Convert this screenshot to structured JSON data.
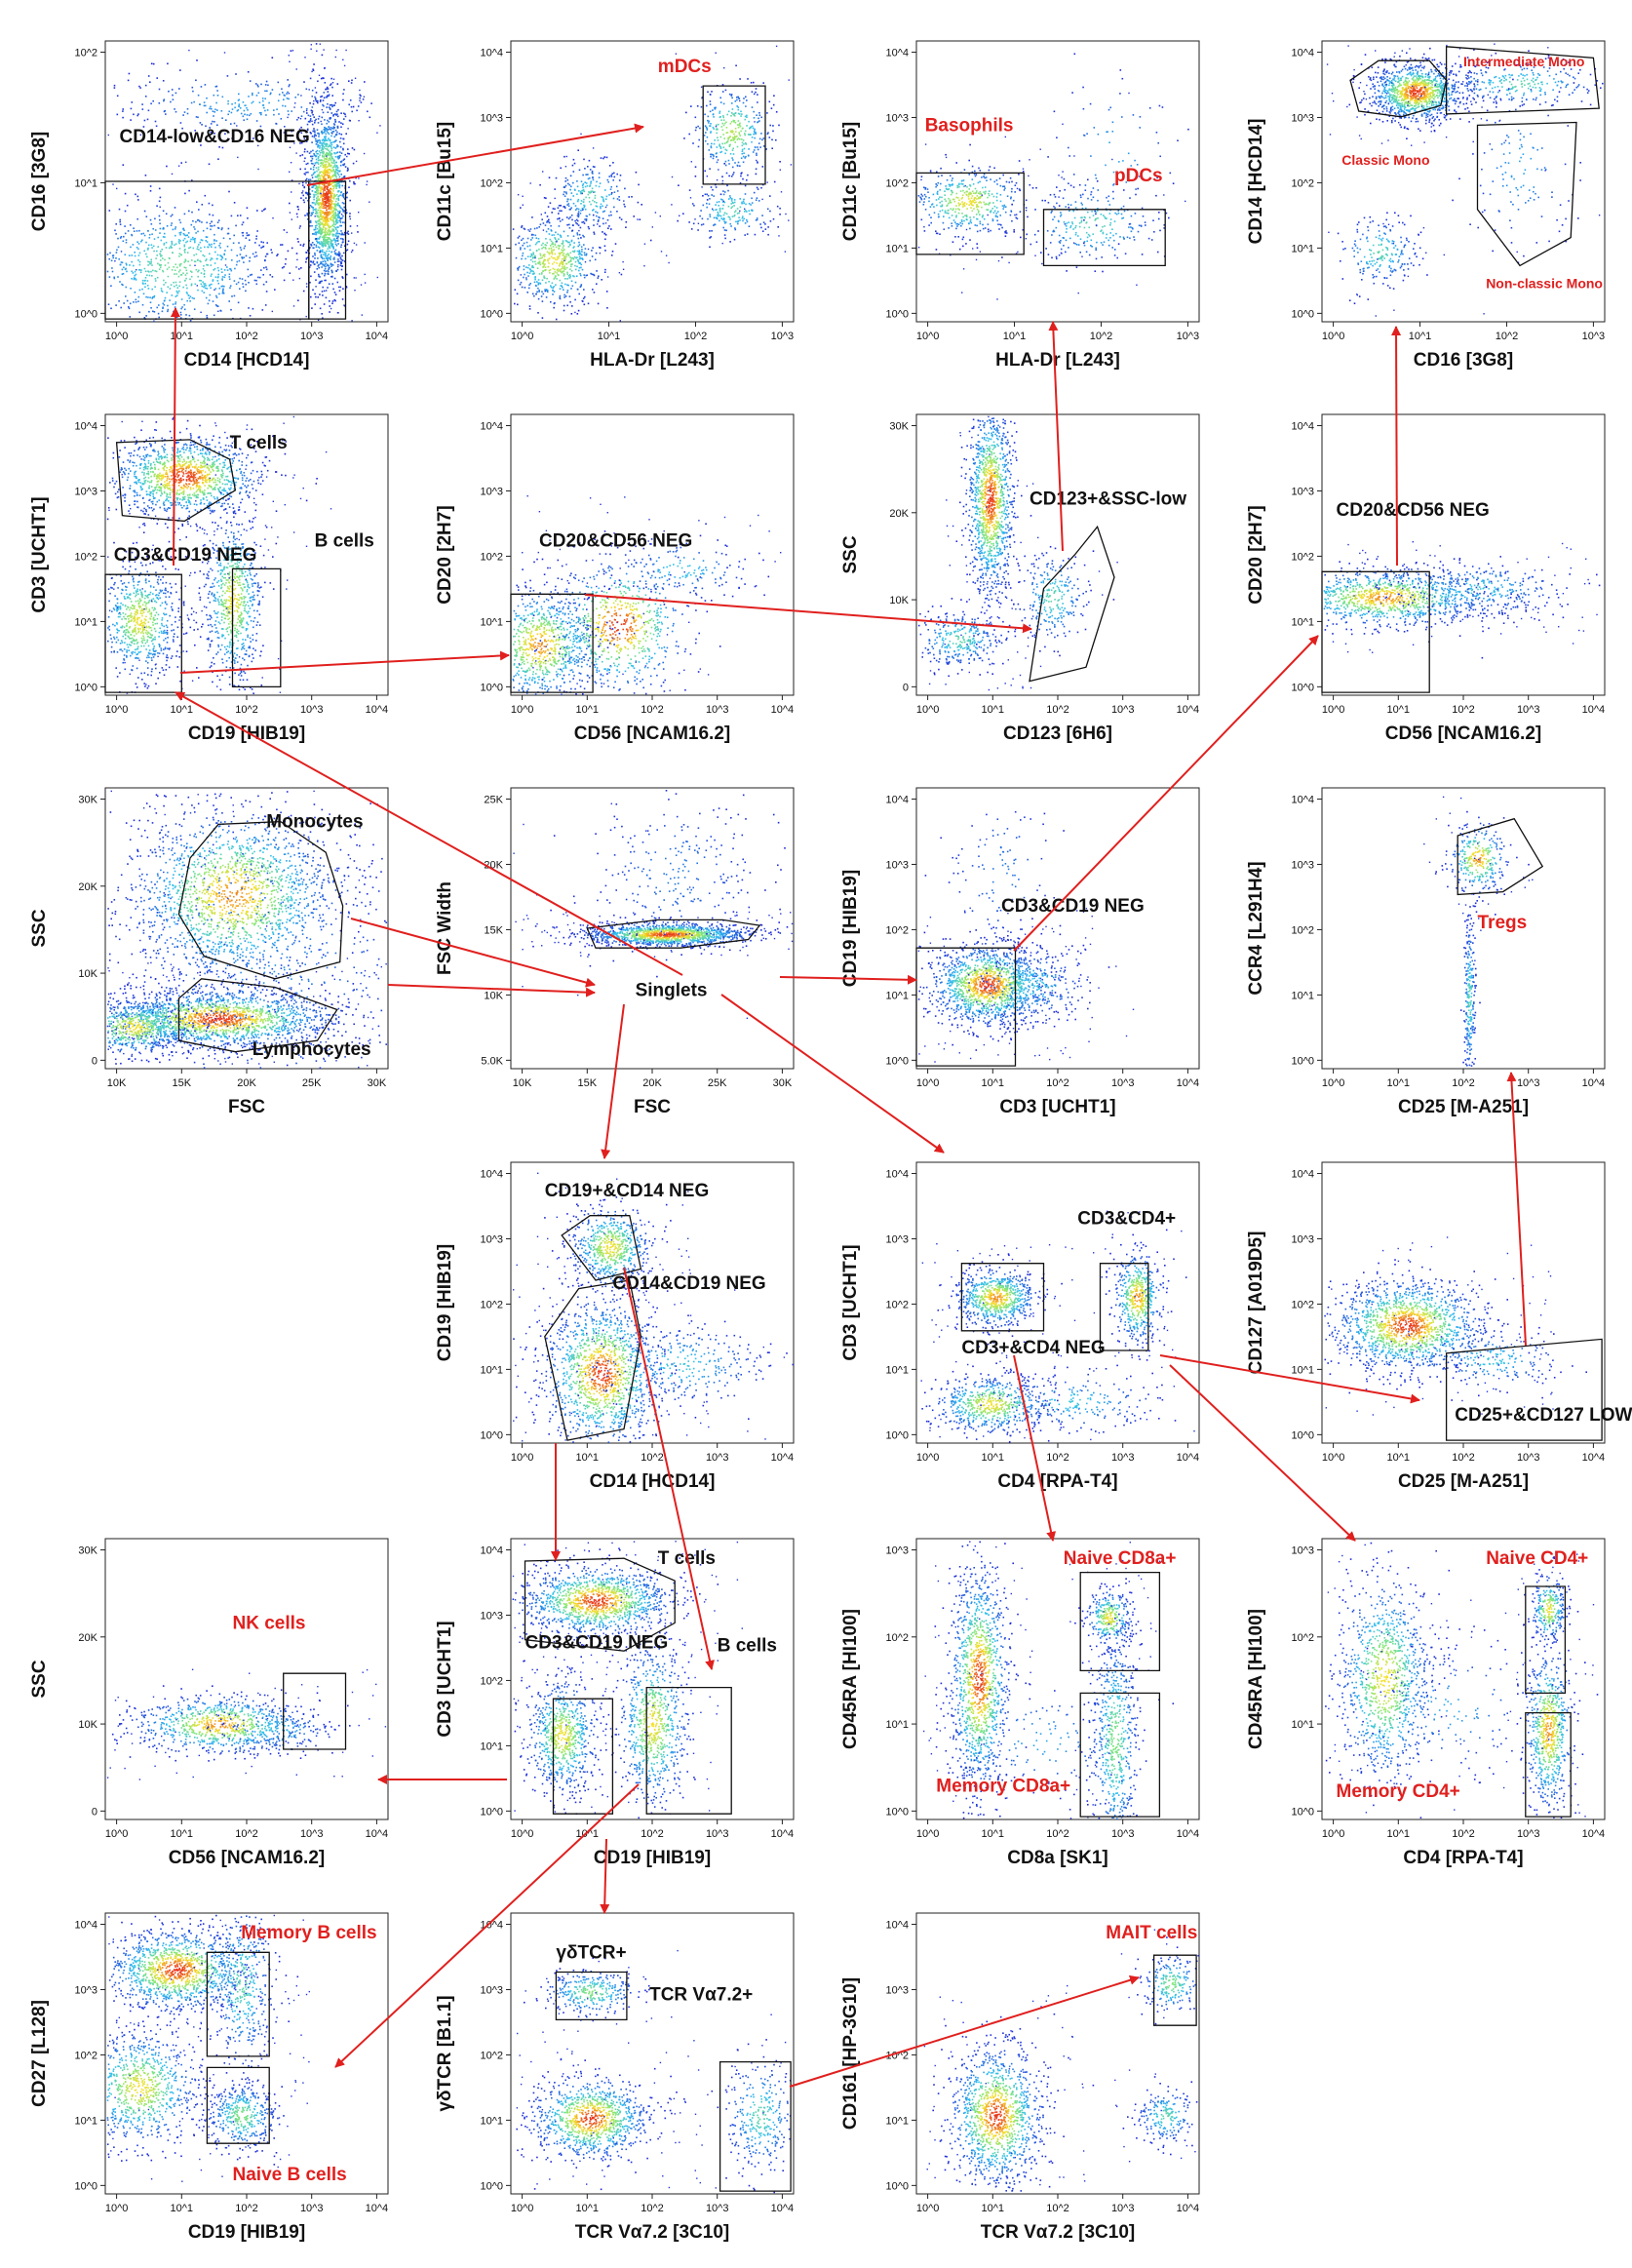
{
  "title": "",
  "colors": {
    "gate_red": "#e0201e",
    "arrow": "#e0201e",
    "gate_line": "#111111",
    "dot_low": "#1b2bd6",
    "dot_mid": "#2fd1ef",
    "dot_high": "#f6e02a",
    "dot_peak": "#e8321a"
  },
  "panels": [
    {
      "id": "p1",
      "xlabel": "CD14 [HCD14]",
      "ylabel": "CD16 [3G8]",
      "yticks": [
        "10^0",
        "10^1",
        "10^2"
      ],
      "xticks": [
        "10^0",
        "10^1",
        "10^2",
        "10^3",
        "10^4"
      ],
      "gates": [
        {
          "label": "CD14-low&CD16 NEG",
          "red": false
        }
      ]
    },
    {
      "id": "p2",
      "xlabel": "HLA-Dr [L243]",
      "ylabel": "CD11c [Bu15]",
      "yticks": [
        "10^0",
        "10^1",
        "10^2",
        "10^3",
        "10^4"
      ],
      "xticks": [
        "10^0",
        "10^1",
        "10^2",
        "10^3"
      ],
      "gates": [
        {
          "label": "mDCs",
          "red": true
        }
      ]
    },
    {
      "id": "p3",
      "xlabel": "HLA-Dr [L243]",
      "ylabel": "CD11c [Bu15]",
      "yticks": [
        "10^0",
        "10^1",
        "10^2",
        "10^3",
        "10^4"
      ],
      "xticks": [
        "10^0",
        "10^1",
        "10^2",
        "10^3"
      ],
      "gates": [
        {
          "label": "Basophils",
          "red": true
        },
        {
          "label": "pDCs",
          "red": true
        }
      ]
    },
    {
      "id": "p4",
      "xlabel": "CD16 [3G8]",
      "ylabel": "CD14 [HCD14]",
      "yticks": [
        "10^0",
        "10^1",
        "10^2",
        "10^3",
        "10^4"
      ],
      "xticks": [
        "10^0",
        "10^1",
        "10^2",
        "10^3"
      ],
      "gates": [
        {
          "label": "Intermediate Mono",
          "red": true
        },
        {
          "label": "Classic Mono",
          "red": true
        },
        {
          "label": "Non-classic Mono",
          "red": true
        }
      ]
    },
    {
      "id": "p5",
      "xlabel": "CD19 [HIB19]",
      "ylabel": "CD3 [UCHT1]",
      "yticks": [
        "10^0",
        "10^1",
        "10^2",
        "10^3",
        "10^4"
      ],
      "xticks": [
        "10^0",
        "10^1",
        "10^2",
        "10^3",
        "10^4"
      ],
      "gates": [
        {
          "label": "T cells",
          "red": false
        },
        {
          "label": "CD3&CD19 NEG",
          "red": false
        },
        {
          "label": "B cells",
          "red": false
        }
      ]
    },
    {
      "id": "p6",
      "xlabel": "CD56 [NCAM16.2]",
      "ylabel": "CD20 [2H7]",
      "yticks": [
        "10^0",
        "10^1",
        "10^2",
        "10^3",
        "10^4"
      ],
      "xticks": [
        "10^0",
        "10^1",
        "10^2",
        "10^3",
        "10^4"
      ],
      "gates": [
        {
          "label": "CD20&CD56 NEG",
          "red": false
        }
      ]
    },
    {
      "id": "p7",
      "xlabel": "CD123 [6H6]",
      "ylabel": "SSC",
      "yticks": [
        "0",
        "10K",
        "20K",
        "30K"
      ],
      "xticks": [
        "10^0",
        "10^1",
        "10^2",
        "10^3",
        "10^4"
      ],
      "gates": [
        {
          "label": "CD123+&SSC-low",
          "red": false
        }
      ]
    },
    {
      "id": "p8",
      "xlabel": "CD56 [NCAM16.2]",
      "ylabel": "CD20 [2H7]",
      "yticks": [
        "10^0",
        "10^1",
        "10^2",
        "10^3",
        "10^4"
      ],
      "xticks": [
        "10^0",
        "10^1",
        "10^2",
        "10^3",
        "10^4"
      ],
      "gates": [
        {
          "label": "CD20&CD56 NEG",
          "red": false
        }
      ]
    },
    {
      "id": "p9",
      "xlabel": "FSC",
      "ylabel": "SSC",
      "yticks": [
        "0",
        "10K",
        "20K",
        "30K"
      ],
      "xticks": [
        "10K",
        "15K",
        "20K",
        "25K",
        "30K"
      ],
      "gates": [
        {
          "label": "Monocytes",
          "red": false
        },
        {
          "label": "Lymphocytes",
          "red": false
        }
      ]
    },
    {
      "id": "p10",
      "xlabel": "FSC",
      "ylabel": "FSC Width",
      "yticks": [
        "5.0K",
        "10K",
        "15K",
        "20K",
        "25K"
      ],
      "xticks": [
        "10K",
        "15K",
        "20K",
        "25K",
        "30K"
      ],
      "gates": [
        {
          "label": "Singlets",
          "red": false
        }
      ]
    },
    {
      "id": "p11",
      "xlabel": "CD3 [UCHT1]",
      "ylabel": "CD19 [HIB19]",
      "yticks": [
        "10^0",
        "10^1",
        "10^2",
        "10^3",
        "10^4"
      ],
      "xticks": [
        "10^0",
        "10^1",
        "10^2",
        "10^3",
        "10^4"
      ],
      "gates": [
        {
          "label": "CD3&CD19 NEG",
          "red": false
        }
      ]
    },
    {
      "id": "p12",
      "xlabel": "CD25 [M-A251]",
      "ylabel": "CCR4 [L291H4]",
      "yticks": [
        "10^0",
        "10^1",
        "10^2",
        "10^3",
        "10^4"
      ],
      "xticks": [
        "10^0",
        "10^1",
        "10^2",
        "10^3",
        "10^4"
      ],
      "gates": [
        {
          "label": "Tregs",
          "red": true
        }
      ]
    },
    {
      "id": "p13",
      "xlabel": "CD14 [HCD14]",
      "ylabel": "CD19 [HIB19]",
      "yticks": [
        "10^0",
        "10^1",
        "10^2",
        "10^3",
        "10^4"
      ],
      "xticks": [
        "10^0",
        "10^1",
        "10^2",
        "10^3",
        "10^4"
      ],
      "gates": [
        {
          "label": "CD19+&CD14 NEG",
          "red": false
        },
        {
          "label": "CD14&CD19 NEG",
          "red": false
        }
      ]
    },
    {
      "id": "p14",
      "xlabel": "CD4 [RPA-T4]",
      "ylabel": "CD3 [UCHT1]",
      "yticks": [
        "10^0",
        "10^1",
        "10^2",
        "10^3",
        "10^4"
      ],
      "xticks": [
        "10^0",
        "10^1",
        "10^2",
        "10^3",
        "10^4"
      ],
      "gates": [
        {
          "label": "CD3&CD4+",
          "red": false
        },
        {
          "label": "CD3+&CD4 NEG",
          "red": false
        }
      ]
    },
    {
      "id": "p15",
      "xlabel": "CD25 [M-A251]",
      "ylabel": "CD127 [A019D5]",
      "yticks": [
        "10^0",
        "10^1",
        "10^2",
        "10^3",
        "10^4"
      ],
      "xticks": [
        "10^0",
        "10^1",
        "10^2",
        "10^3",
        "10^4"
      ],
      "gates": [
        {
          "label": "CD25+&CD127 LOW",
          "red": false
        }
      ]
    },
    {
      "id": "p16",
      "xlabel": "CD56 [NCAM16.2]",
      "ylabel": "SSC",
      "yticks": [
        "0",
        "10K",
        "20K",
        "30K"
      ],
      "xticks": [
        "10^0",
        "10^1",
        "10^2",
        "10^3",
        "10^4"
      ],
      "gates": [
        {
          "label": "NK cells",
          "red": true
        }
      ]
    },
    {
      "id": "p17",
      "xlabel": "CD19 [HIB19]",
      "ylabel": "CD3 [UCHT1]",
      "yticks": [
        "10^0",
        "10^1",
        "10^2",
        "10^3",
        "10^4"
      ],
      "xticks": [
        "10^0",
        "10^1",
        "10^2",
        "10^3",
        "10^4"
      ],
      "gates": [
        {
          "label": "T cells",
          "red": false
        },
        {
          "label": "CD3&CD19 NEG",
          "red": false
        },
        {
          "label": "B cells",
          "red": false
        }
      ]
    },
    {
      "id": "p18",
      "xlabel": "CD8a [SK1]",
      "ylabel": "CD45RA [HI100]",
      "yticks": [
        "10^0",
        "10^1",
        "10^2",
        "10^3"
      ],
      "xticks": [
        "10^0",
        "10^1",
        "10^2",
        "10^3",
        "10^4"
      ],
      "gates": [
        {
          "label": "Naive CD8a+",
          "red": true
        },
        {
          "label": "Memory CD8a+",
          "red": true
        }
      ]
    },
    {
      "id": "p19",
      "xlabel": "CD4 [RPA-T4]",
      "ylabel": "CD45RA [HI100]",
      "yticks": [
        "10^0",
        "10^1",
        "10^2",
        "10^3"
      ],
      "xticks": [
        "10^0",
        "10^1",
        "10^2",
        "10^3",
        "10^4"
      ],
      "gates": [
        {
          "label": "Naive CD4+",
          "red": true
        },
        {
          "label": "Memory CD4+",
          "red": true
        }
      ]
    },
    {
      "id": "p20",
      "xlabel": "CD19 [HIB19]",
      "ylabel": "CD27 [L128]",
      "yticks": [
        "10^0",
        "10^1",
        "10^2",
        "10^3",
        "10^4"
      ],
      "xticks": [
        "10^0",
        "10^1",
        "10^2",
        "10^3",
        "10^4"
      ],
      "gates": [
        {
          "label": "Memory B cells",
          "red": true
        },
        {
          "label": "Naive B cells",
          "red": true
        }
      ]
    },
    {
      "id": "p21",
      "xlabel": "TCR Vα7.2 [3C10]",
      "ylabel": "γδTCR [B1.1]",
      "yticks": [
        "10^0",
        "10^1",
        "10^2",
        "10^3",
        "10^4"
      ],
      "xticks": [
        "10^0",
        "10^1",
        "10^2",
        "10^3",
        "10^4"
      ],
      "gates": [
        {
          "label": "γδTCR+",
          "red": false
        },
        {
          "label": "TCR Vα7.2+",
          "red": false
        }
      ]
    },
    {
      "id": "p22",
      "xlabel": "TCR Vα7.2 [3C10]",
      "ylabel": "CD161 [HP-3G10]",
      "yticks": [
        "10^0",
        "10^1",
        "10^2",
        "10^3",
        "10^4"
      ],
      "xticks": [
        "10^0",
        "10^1",
        "10^2",
        "10^3",
        "10^4"
      ],
      "gates": [
        {
          "label": "MAIT cells",
          "red": true
        }
      ]
    }
  ]
}
